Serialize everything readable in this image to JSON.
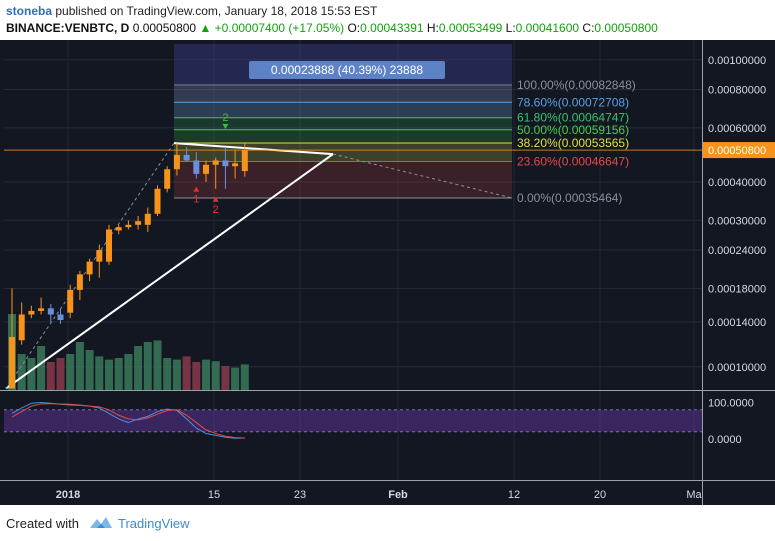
{
  "header": {
    "author": "stoneba",
    "published_text": "published on TradingView.com, January 18, 2018 15:53 EST",
    "symbol": "BINANCE:VENBTC, D",
    "price": "0.00050800",
    "change_arrow": "▲",
    "change": "+0.00007400 (+17.05%)",
    "o_label": "O:",
    "o_value": "0.00043391",
    "h_label": "H:",
    "h_value": "0.00053499",
    "l_label": "L:",
    "l_value": "0.00041600",
    "c_label": "C:",
    "c_value": "0.00050800"
  },
  "footer": {
    "created_with": "Created with",
    "brand": "TradingView",
    "logo_icon": "tradingview-cloud-icon"
  },
  "colors": {
    "background": "#131722",
    "up": "#f7931a",
    "down": "#6c8fd8",
    "accent_green": "#13a10e",
    "price_tag": "#f7931a"
  },
  "chart_data": [
    {
      "type": "candlestick",
      "title": "BINANCE:VENBTC, D",
      "scale": "log",
      "ylim": [
        8.4e-05,
        0.00116
      ],
      "yticks": [
        "0.00100000",
        "0.00080000",
        "0.00060000",
        "0.00040000",
        "0.00030000",
        "0.00024000",
        "0.00018000",
        "0.00014000",
        "0.00010000"
      ],
      "xticks": [
        "2018",
        "15",
        "23",
        "Feb",
        "12",
        "20",
        "Ma"
      ],
      "last_price_label": "0.00050800",
      "candles": [
        {
          "o": 8.5e-05,
          "h": 0.00018,
          "l": 8.5e-05,
          "c": 0.000125
        },
        {
          "o": 0.000122,
          "h": 0.000162,
          "l": 0.000118,
          "c": 0.000148
        },
        {
          "o": 0.000148,
          "h": 0.000158,
          "l": 0.000144,
          "c": 0.000152
        },
        {
          "o": 0.000152,
          "h": 0.000168,
          "l": 0.000148,
          "c": 0.000155
        },
        {
          "o": 0.000155,
          "h": 0.00016,
          "l": 0.00014,
          "c": 0.000148
        },
        {
          "o": 0.000148,
          "h": 0.000155,
          "l": 0.000138,
          "c": 0.000142
        },
        {
          "o": 0.00015,
          "h": 0.000185,
          "l": 0.000144,
          "c": 0.000178
        },
        {
          "o": 0.000178,
          "h": 0.000205,
          "l": 0.000165,
          "c": 0.0002
        },
        {
          "o": 0.0002,
          "h": 0.000225,
          "l": 0.00019,
          "c": 0.00022
        },
        {
          "o": 0.00022,
          "h": 0.00025,
          "l": 0.000195,
          "c": 0.00024
        },
        {
          "o": 0.00022,
          "h": 0.00029,
          "l": 0.000215,
          "c": 0.00028
        },
        {
          "o": 0.000278,
          "h": 0.00029,
          "l": 0.00027,
          "c": 0.000285
        },
        {
          "o": 0.000285,
          "h": 0.0003,
          "l": 0.00028,
          "c": 0.00029
        },
        {
          "o": 0.00029,
          "h": 0.00031,
          "l": 0.00028,
          "c": 0.000298
        },
        {
          "o": 0.00029,
          "h": 0.00033,
          "l": 0.000275,
          "c": 0.000315
        },
        {
          "o": 0.000315,
          "h": 0.00039,
          "l": 0.00031,
          "c": 0.00038
        },
        {
          "o": 0.00038,
          "h": 0.00045,
          "l": 0.00037,
          "c": 0.00044
        },
        {
          "o": 0.00044,
          "h": 0.000535,
          "l": 0.00042,
          "c": 0.00049
        },
        {
          "o": 0.00049,
          "h": 0.00052,
          "l": 0.000465,
          "c": 0.00047
        },
        {
          "o": 0.00047,
          "h": 0.0005,
          "l": 0.00041,
          "c": 0.000425
        },
        {
          "o": 0.000425,
          "h": 0.00047,
          "l": 0.0004,
          "c": 0.000455
        },
        {
          "o": 0.000455,
          "h": 0.00048,
          "l": 0.00038,
          "c": 0.00047
        },
        {
          "o": 0.00047,
          "h": 0.00052,
          "l": 0.00038,
          "c": 0.00045
        },
        {
          "o": 0.00045,
          "h": 0.00051,
          "l": 0.00041,
          "c": 0.00046
        },
        {
          "o": 0.000434,
          "h": 0.000535,
          "l": 0.000416,
          "c": 0.000508
        }
      ],
      "volumes": [
        0.95,
        0.45,
        0.4,
        0.55,
        0.35,
        0.4,
        0.45,
        0.6,
        0.5,
        0.42,
        0.38,
        0.4,
        0.45,
        0.55,
        0.6,
        0.62,
        0.4,
        0.38,
        0.42,
        0.35,
        0.38,
        0.36,
        0.3,
        0.28,
        0.32
      ],
      "fib_levels": [
        {
          "label": "100.00%(0.00082848)",
          "value": 0.00082848,
          "color": "#8a8f9c"
        },
        {
          "label": "78.60%(0.00072708)",
          "value": 0.00072708,
          "color": "#5aa0e0"
        },
        {
          "label": "61.80%(0.00064747)",
          "value": 0.00064747,
          "color": "#3cc070"
        },
        {
          "label": "50.00%(0.00059156)",
          "value": 0.00059156,
          "color": "#46d046"
        },
        {
          "label": "38.20%(0.00053565)",
          "value": 0.00053565,
          "color": "#d8e040"
        },
        {
          "label": "23.60%(0.00046647)",
          "value": 0.00046647,
          "color": "#e84848"
        },
        {
          "label": "0.00%(0.00035464)",
          "value": 0.00035464,
          "color": "#8a8f9c"
        }
      ],
      "range_box_label": "0.00023888 (40.39%) 23888",
      "markers": [
        {
          "text": "2",
          "candle": 22,
          "color": "#3fbf3f",
          "position": "above"
        },
        {
          "text": "1",
          "candle": 19,
          "color": "#e03030",
          "position": "below"
        },
        {
          "text": "2",
          "candle": 21,
          "color": "#e03030",
          "position": "below"
        }
      ]
    },
    {
      "type": "line",
      "title": "",
      "ylim": [
        -30,
        115
      ],
      "yticks": [
        "100.0000",
        "0.0000"
      ],
      "series": [
        {
          "values": [
            70,
            85,
            98,
            100,
            98,
            95,
            93,
            92,
            90,
            85,
            70,
            55,
            45,
            55,
            62,
            75,
            82,
            78,
            55,
            30,
            15,
            10,
            5,
            2,
            3
          ]
        },
        {
          "values": [
            60,
            75,
            90,
            96,
            97,
            96,
            95,
            93,
            90,
            88,
            80,
            65,
            55,
            52,
            58,
            68,
            78,
            80,
            65,
            45,
            25,
            15,
            8,
            4,
            3
          ]
        }
      ]
    }
  ]
}
